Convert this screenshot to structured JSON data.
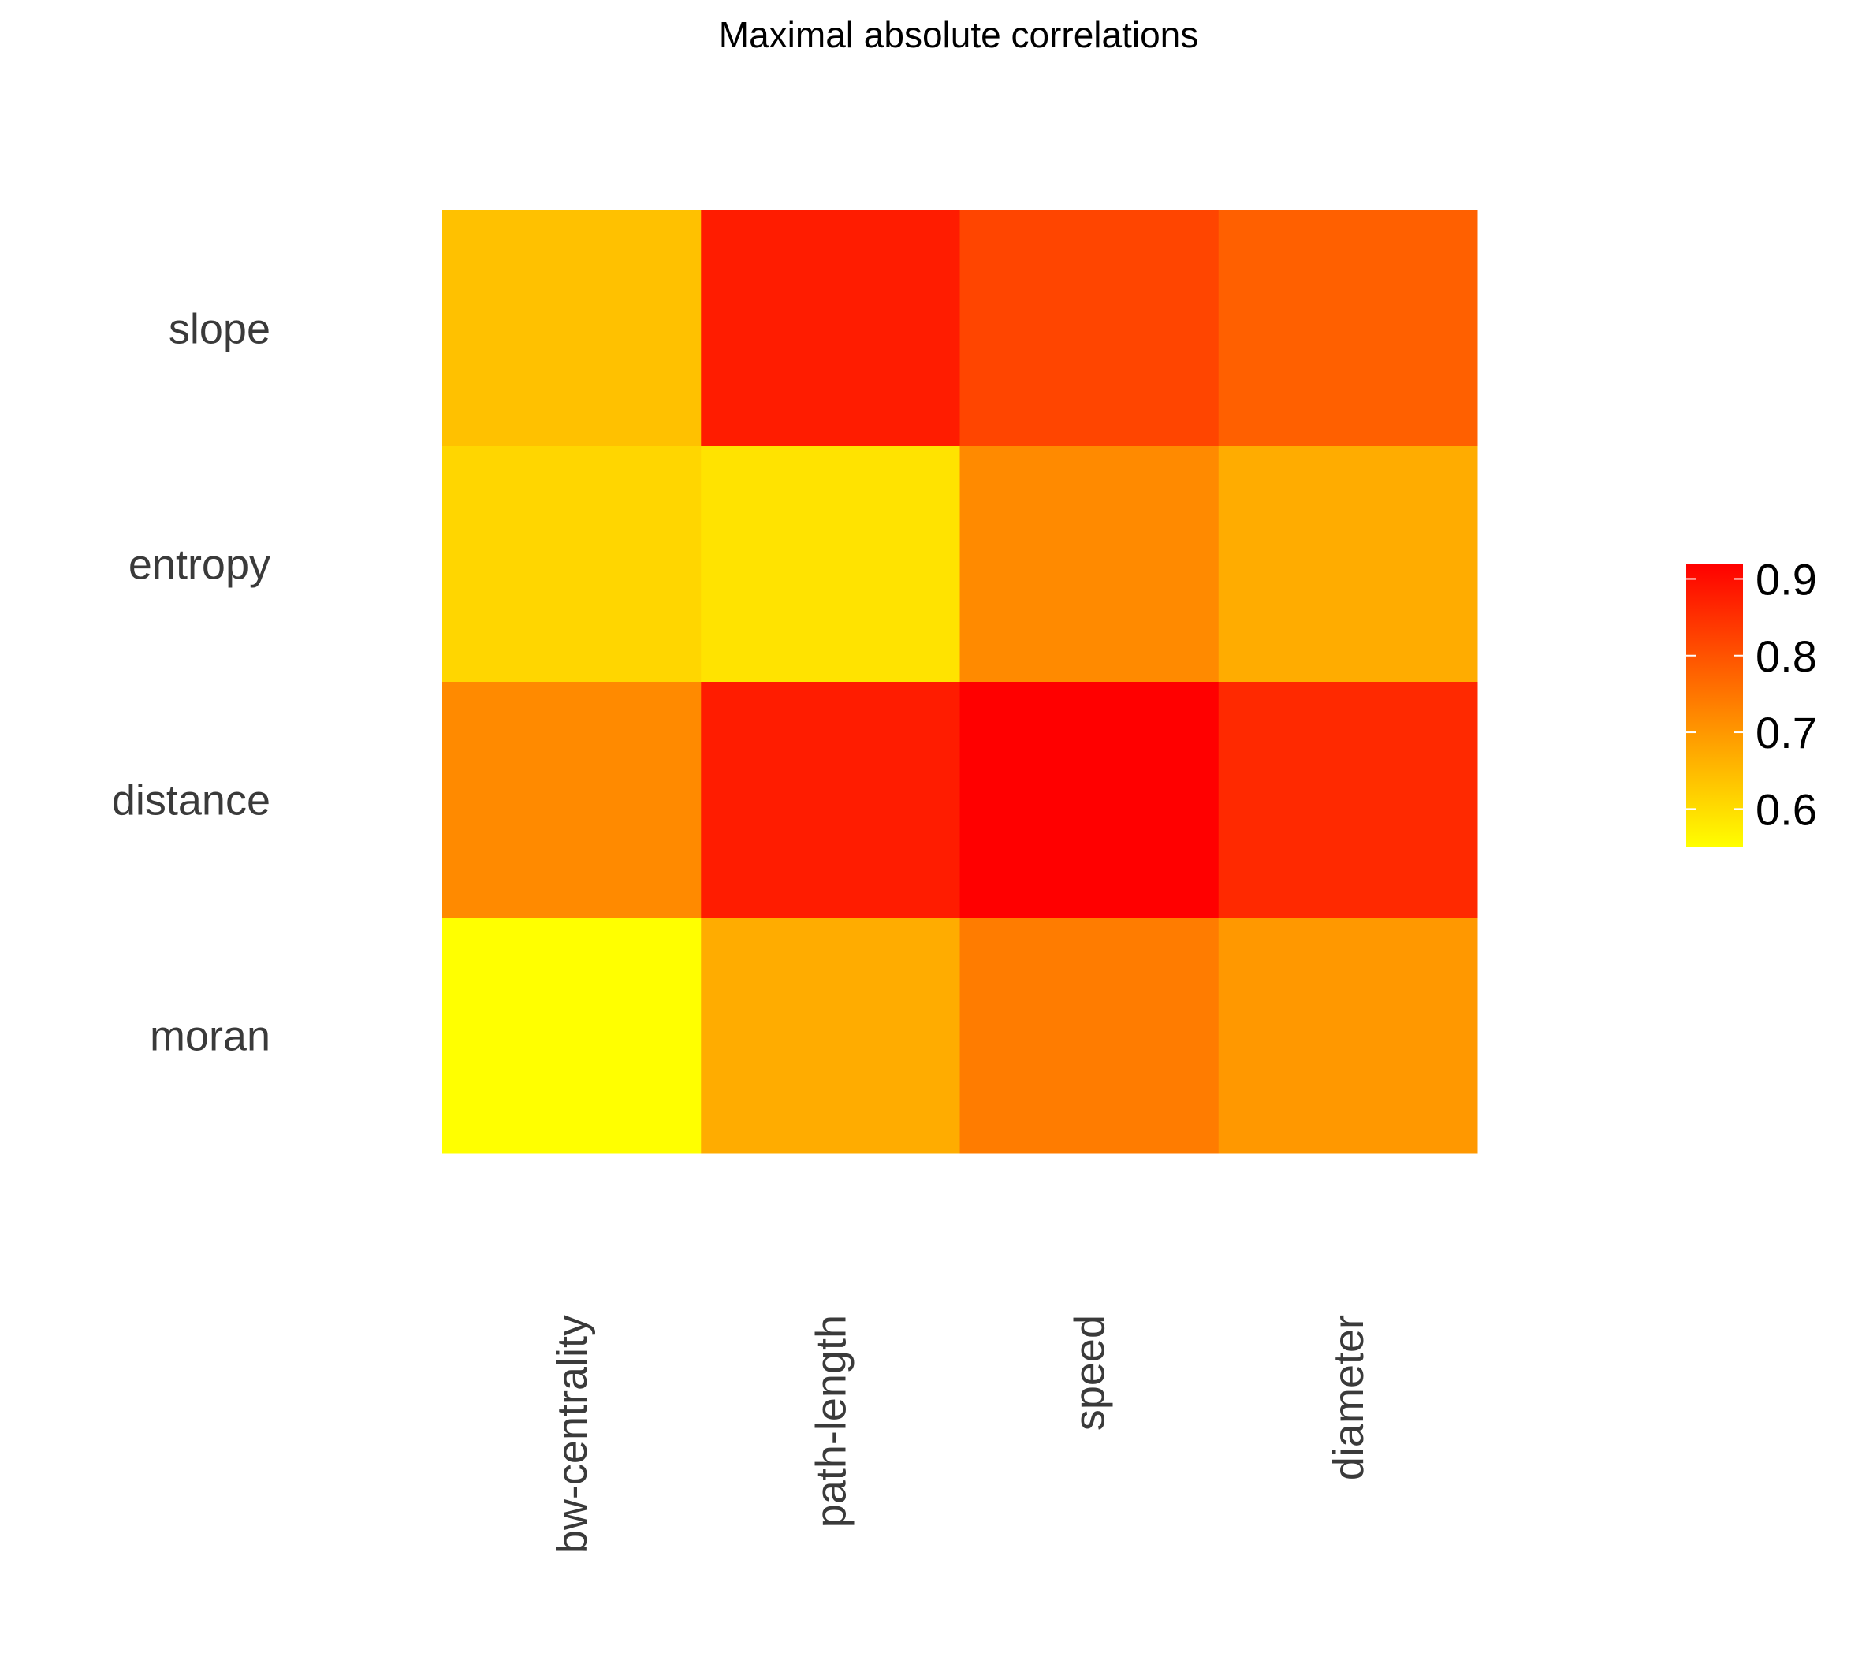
{
  "chart_data": {
    "type": "heatmap",
    "title": "Maximal absolute correlations",
    "xlabel": "",
    "ylabel": "",
    "columns": [
      "bw-centrality",
      "path-length",
      "speed",
      "diameter"
    ],
    "rows": [
      "slope",
      "entropy",
      "distance",
      "moran"
    ],
    "values": [
      [
        0.64,
        0.88,
        0.82,
        0.78
      ],
      [
        0.61,
        0.59,
        0.72,
        0.67
      ],
      [
        0.72,
        0.88,
        0.92,
        0.86
      ],
      [
        0.55,
        0.67,
        0.74,
        0.7
      ]
    ],
    "color_scale": {
      "low": "#ffff00",
      "high": "#ff0000",
      "domain": [
        0.55,
        0.92
      ]
    },
    "legend": {
      "position": "right",
      "ticks": [
        0.6,
        0.7,
        0.8,
        0.9
      ],
      "tick_labels": [
        "0.6",
        "0.7",
        "0.8",
        "0.9"
      ]
    },
    "grid": false
  }
}
